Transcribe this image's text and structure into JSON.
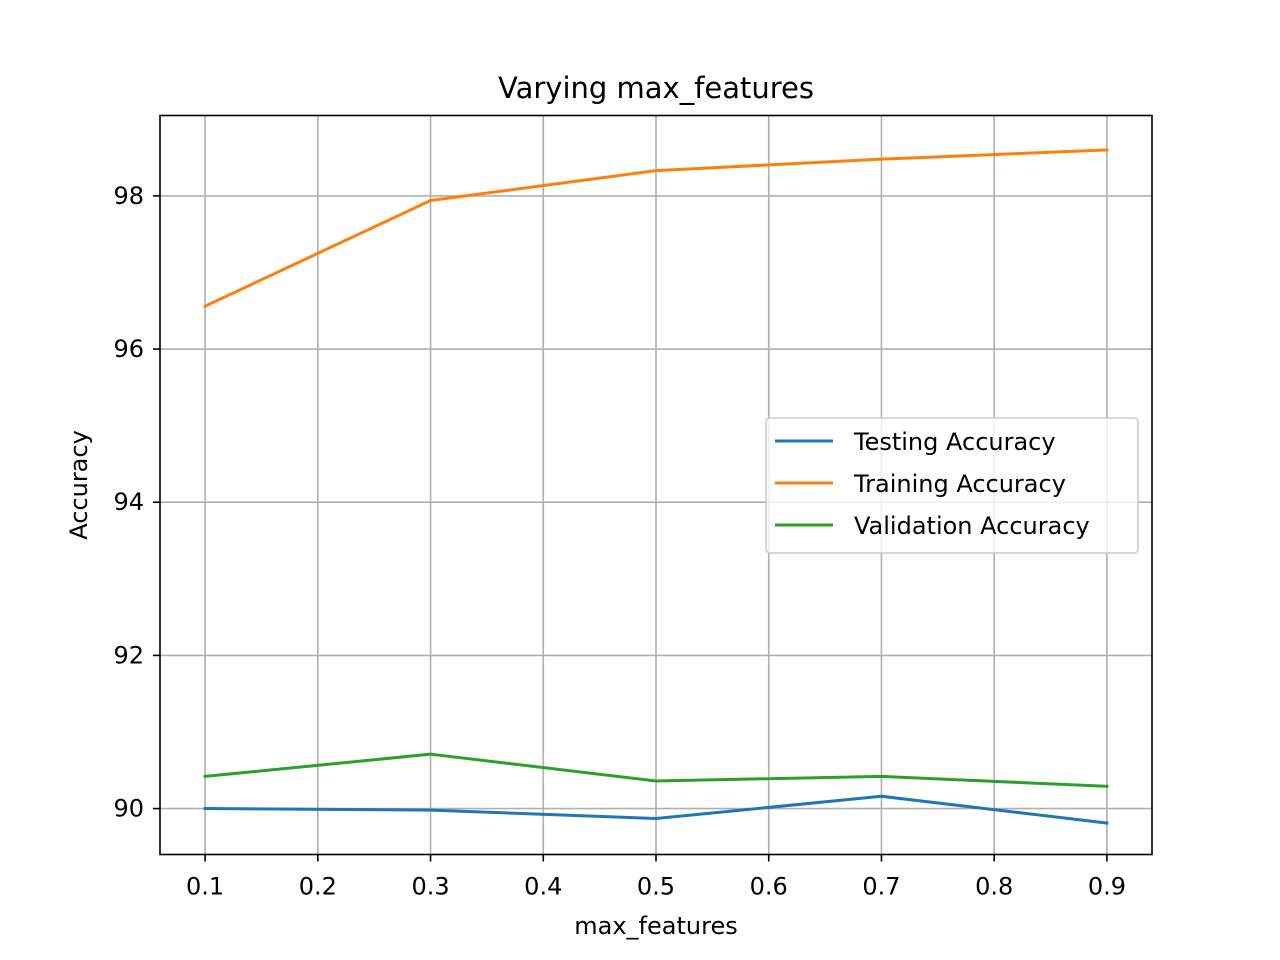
{
  "chart_data": {
    "type": "line",
    "title": "Varying max_features",
    "xlabel": "max_features",
    "ylabel": "Accuracy",
    "x": [
      0.1,
      0.3,
      0.5,
      0.7,
      0.9
    ],
    "xticks": [
      0.1,
      0.2,
      0.3,
      0.4,
      0.5,
      0.6,
      0.7,
      0.8,
      0.9
    ],
    "xtick_labels": [
      "0.1",
      "0.2",
      "0.3",
      "0.4",
      "0.5",
      "0.6",
      "0.7",
      "0.8",
      "0.9"
    ],
    "yticks": [
      90,
      92,
      94,
      96,
      98
    ],
    "ytick_labels": [
      "90",
      "92",
      "94",
      "96",
      "98"
    ],
    "xlim": [
      0.06,
      0.94
    ],
    "ylim": [
      89.4,
      99.05
    ],
    "grid": true,
    "legend_position": "center-right",
    "series": [
      {
        "name": "Testing Accuracy",
        "color": "#1f77b4",
        "values": [
          90.0,
          89.98,
          89.87,
          90.16,
          89.81
        ]
      },
      {
        "name": "Training Accuracy",
        "color": "#ff7f0e",
        "values": [
          96.56,
          97.94,
          98.33,
          98.48,
          98.6
        ]
      },
      {
        "name": "Validation Accuracy",
        "color": "#2ca02c",
        "values": [
          90.42,
          90.71,
          90.36,
          90.42,
          90.29
        ]
      }
    ]
  }
}
